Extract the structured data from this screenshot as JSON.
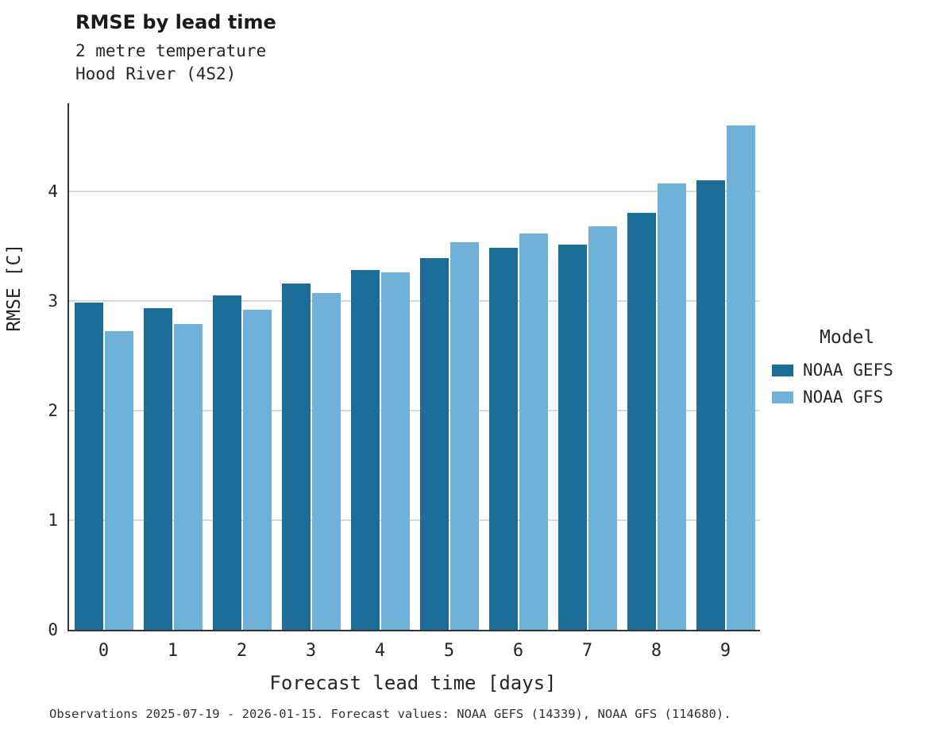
{
  "header": {
    "title": "RMSE by lead time",
    "subtitle1": "2 metre temperature",
    "subtitle2": "Hood River (4S2)"
  },
  "axes": {
    "xlabel": "Forecast lead time [days]",
    "ylabel": "RMSE [C]"
  },
  "legend": {
    "title": "Model",
    "entries": [
      {
        "label": "NOAA GEFS",
        "color": "#1d6d99"
      },
      {
        "label": "NOAA GFS",
        "color": "#70b1d9"
      }
    ]
  },
  "caption": "Observations 2025-07-19 - 2026-01-15. Forecast values: NOAA GEFS (14339), NOAA GFS (114680).",
  "colors": {
    "noaa_gefs": "#1d6d99",
    "noaa_gfs": "#70b1d9",
    "gridline": "#d9d9d9",
    "axis": "#333333"
  },
  "chart_data": {
    "type": "bar",
    "title": "RMSE by lead time",
    "subtitle": [
      "2 metre temperature",
      "Hood River (4S2)"
    ],
    "categories": [
      "0",
      "1",
      "2",
      "3",
      "4",
      "5",
      "6",
      "7",
      "8",
      "9"
    ],
    "series": [
      {
        "name": "NOAA GEFS",
        "color": "#1d6d99",
        "values": [
          2.98,
          2.93,
          3.05,
          3.16,
          3.28,
          3.39,
          3.48,
          3.51,
          3.8,
          4.1
        ]
      },
      {
        "name": "NOAA GFS",
        "color": "#70b1d9",
        "values": [
          2.72,
          2.79,
          2.92,
          3.07,
          3.26,
          3.53,
          3.61,
          3.68,
          4.07,
          4.6
        ]
      }
    ],
    "xlabel": "Forecast lead time [days]",
    "ylabel": "RMSE [C]",
    "ylim": [
      0,
      4.8
    ],
    "yticks": [
      0,
      1,
      2,
      3,
      4
    ],
    "grid": true,
    "legend_position": "right"
  }
}
